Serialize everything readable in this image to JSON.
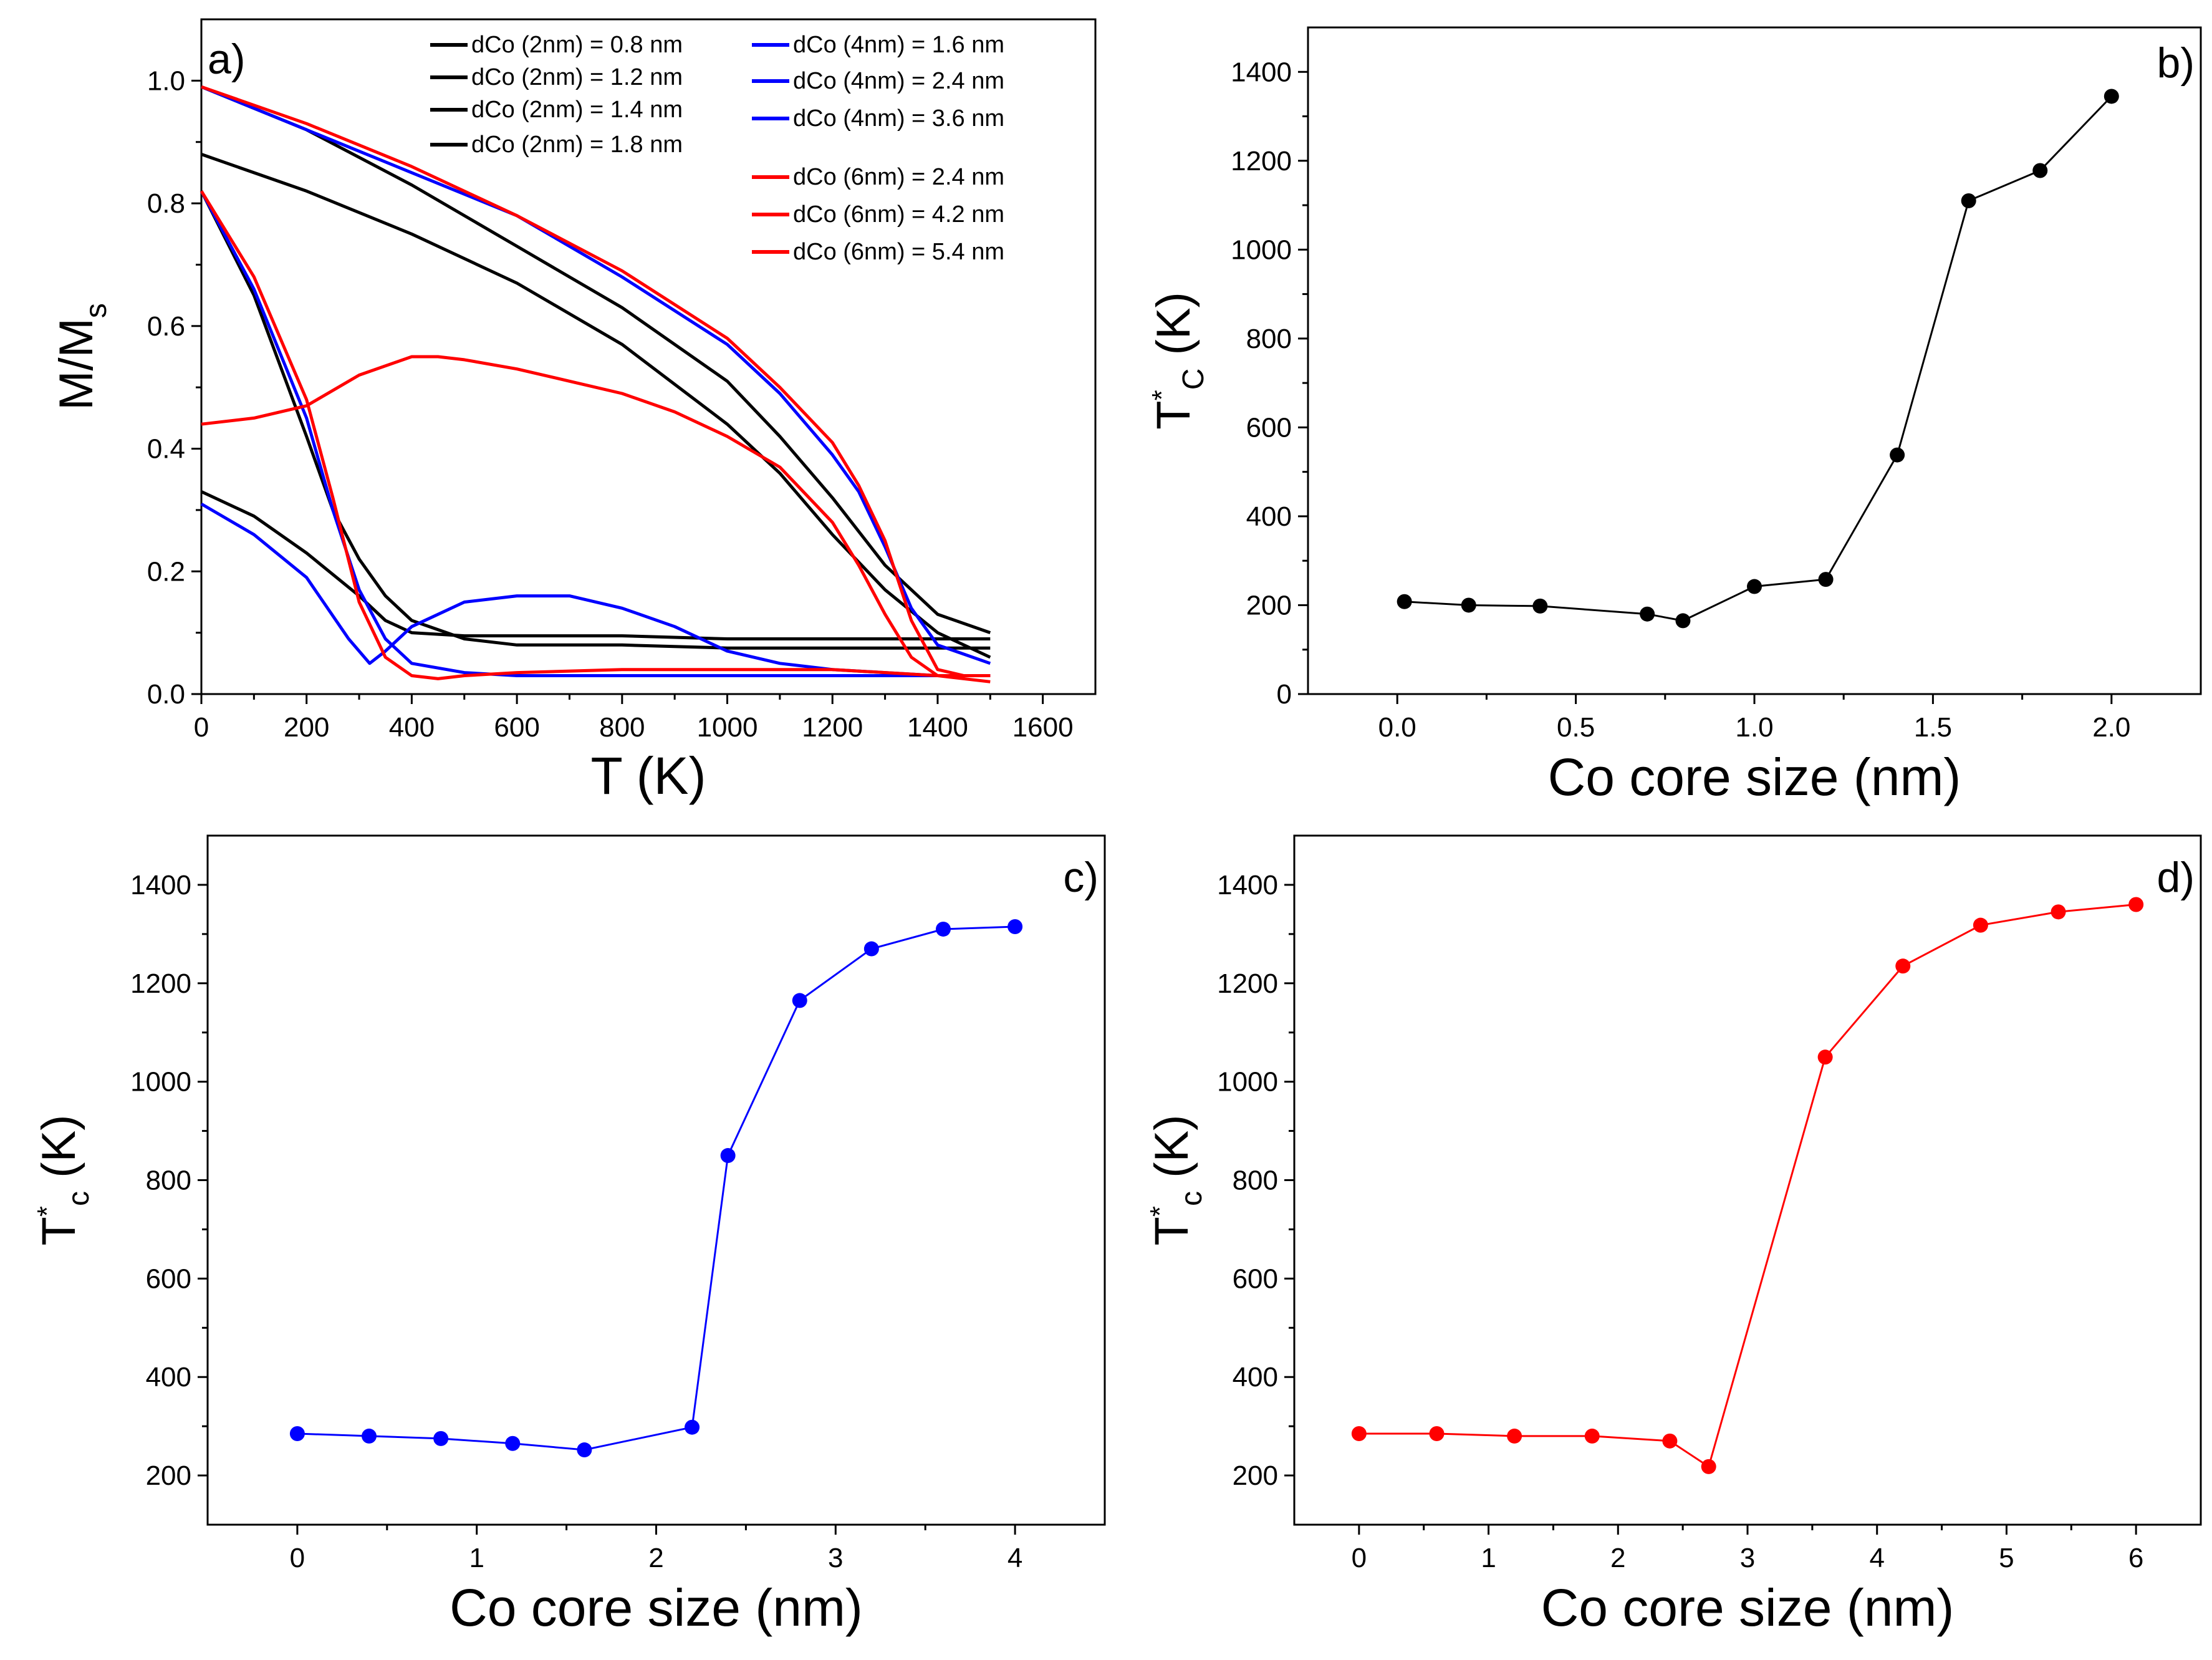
{
  "chart_data": [
    {
      "panel": "a)",
      "type": "line",
      "xlabel": "T  (K)",
      "ylabel": "M/M",
      "ylabel_sub": "s",
      "xlim": [
        0,
        1700
      ],
      "ylim": [
        0,
        1.1
      ],
      "xticks": [
        0,
        200,
        400,
        600,
        800,
        1000,
        1200,
        1400,
        1600
      ],
      "yticks": [
        0.0,
        0.2,
        0.4,
        0.6,
        0.8,
        1.0
      ],
      "series": [
        {
          "name": "dCo (2nm) = 0.8 nm",
          "color": "#000000",
          "x": [
            0,
            100,
            200,
            300,
            350,
            400,
            500,
            600,
            800,
            1000,
            1200,
            1400,
            1500
          ],
          "y": [
            0.33,
            0.29,
            0.23,
            0.16,
            0.12,
            0.1,
            0.095,
            0.095,
            0.095,
            0.09,
            0.09,
            0.09,
            0.09
          ]
        },
        {
          "name": "dCo (2nm) = 1.2 nm",
          "color": "#000000",
          "x": [
            0,
            100,
            200,
            250,
            300,
            350,
            400,
            500,
            600,
            800,
            1000,
            1200,
            1400,
            1500
          ],
          "y": [
            0.82,
            0.65,
            0.42,
            0.3,
            0.22,
            0.16,
            0.12,
            0.09,
            0.08,
            0.08,
            0.075,
            0.075,
            0.075,
            0.075
          ]
        },
        {
          "name": "dCo (2nm) = 1.4 nm",
          "color": "#000000",
          "x": [
            0,
            200,
            400,
            600,
            800,
            1000,
            1100,
            1200,
            1300,
            1400,
            1500
          ],
          "y": [
            0.88,
            0.82,
            0.75,
            0.67,
            0.57,
            0.44,
            0.36,
            0.26,
            0.17,
            0.1,
            0.06
          ]
        },
        {
          "name": "dCo (2nm) = 1.8 nm",
          "color": "#000000",
          "x": [
            0,
            200,
            400,
            600,
            800,
            1000,
            1100,
            1200,
            1300,
            1400,
            1500
          ],
          "y": [
            0.99,
            0.92,
            0.83,
            0.73,
            0.63,
            0.51,
            0.42,
            0.32,
            0.21,
            0.13,
            0.1
          ]
        },
        {
          "name": "dCo (4nm)  = 1.6 nm",
          "color": "#0000ff",
          "x": [
            0,
            100,
            200,
            280,
            320,
            350,
            400,
            500,
            600,
            700,
            800,
            900,
            1000,
            1100,
            1200,
            1300,
            1400,
            1500
          ],
          "y": [
            0.31,
            0.26,
            0.19,
            0.09,
            0.05,
            0.07,
            0.11,
            0.15,
            0.16,
            0.16,
            0.14,
            0.11,
            0.07,
            0.05,
            0.04,
            0.035,
            0.03,
            0.03
          ]
        },
        {
          "name": "dCo (4nm) = 2.4 nm",
          "color": "#0000ff",
          "x": [
            0,
            100,
            200,
            250,
            300,
            350,
            400,
            500,
            600,
            800,
            1000,
            1200,
            1400,
            1500
          ],
          "y": [
            0.82,
            0.66,
            0.45,
            0.3,
            0.17,
            0.09,
            0.05,
            0.035,
            0.03,
            0.03,
            0.03,
            0.03,
            0.03,
            0.03
          ]
        },
        {
          "name": "dCo (4nm) = 3.6 nm",
          "color": "#0000ff",
          "x": [
            0,
            200,
            400,
            600,
            800,
            1000,
            1100,
            1200,
            1250,
            1300,
            1350,
            1400,
            1500
          ],
          "y": [
            0.99,
            0.92,
            0.85,
            0.78,
            0.68,
            0.57,
            0.49,
            0.39,
            0.33,
            0.24,
            0.14,
            0.08,
            0.05
          ]
        },
        {
          "name": "dCo (6nm) = 2.4 nm",
          "color": "#ff0000",
          "x": [
            0,
            100,
            200,
            300,
            400,
            450,
            500,
            600,
            700,
            800,
            900,
            1000,
            1100,
            1200,
            1250,
            1300,
            1350,
            1400,
            1500
          ],
          "y": [
            0.44,
            0.45,
            0.47,
            0.52,
            0.55,
            0.55,
            0.545,
            0.53,
            0.51,
            0.49,
            0.46,
            0.42,
            0.37,
            0.28,
            0.21,
            0.13,
            0.06,
            0.03,
            0.02
          ]
        },
        {
          "name": "dCo (6nm) = 4.2 nm",
          "color": "#ff0000",
          "x": [
            0,
            100,
            200,
            250,
            300,
            350,
            400,
            450,
            500,
            600,
            800,
            1000,
            1200,
            1400,
            1500
          ],
          "y": [
            0.82,
            0.68,
            0.48,
            0.32,
            0.15,
            0.06,
            0.03,
            0.025,
            0.03,
            0.035,
            0.04,
            0.04,
            0.04,
            0.03,
            0.03
          ]
        },
        {
          "name": "dCo (6nm) = 5.4 nm",
          "color": "#ff0000",
          "x": [
            0,
            200,
            400,
            600,
            800,
            1000,
            1100,
            1200,
            1250,
            1300,
            1350,
            1400,
            1450,
            1500
          ],
          "y": [
            0.99,
            0.93,
            0.86,
            0.78,
            0.69,
            0.58,
            0.5,
            0.41,
            0.34,
            0.25,
            0.12,
            0.04,
            0.03,
            0.03
          ]
        }
      ]
    },
    {
      "panel": "b)",
      "type": "line",
      "xlabel": "Co core size (nm)",
      "ylabel": "T",
      "ylabel_sup": "*",
      "ylabel_sub": "C",
      "ylabel_unit": " (K)",
      "xlim": [
        -0.25,
        2.25
      ],
      "ylim": [
        0,
        1500
      ],
      "xticks": [
        0.0,
        0.5,
        1.0,
        1.5,
        2.0
      ],
      "xtick_labels": [
        "0.0",
        "0.5",
        "1.0",
        "1.5",
        "2.0"
      ],
      "yticks": [
        0,
        200,
        400,
        600,
        800,
        1000,
        1200,
        1400
      ],
      "color": "#000000",
      "x": [
        0.02,
        0.2,
        0.4,
        0.7,
        0.8,
        1.0,
        1.2,
        1.4,
        1.6,
        1.8,
        2.0
      ],
      "y": [
        208,
        200,
        198,
        180,
        165,
        242,
        258,
        538,
        1110,
        1178,
        1345
      ]
    },
    {
      "panel": "c)",
      "type": "line",
      "xlabel": "Co core size (nm)",
      "ylabel": "T",
      "ylabel_sup": "*",
      "ylabel_sub": "c",
      "ylabel_unit": " (K)",
      "xlim": [
        -0.5,
        4.5
      ],
      "ylim": [
        100,
        1500
      ],
      "xticks": [
        0,
        1,
        2,
        3,
        4
      ],
      "yticks": [
        200,
        400,
        600,
        800,
        1000,
        1200,
        1400
      ],
      "color": "#0000ff",
      "x": [
        0,
        0.4,
        0.8,
        1.2,
        1.6,
        2.2,
        2.4,
        2.8,
        3.2,
        3.6,
        4.0
      ],
      "y": [
        285,
        280,
        275,
        265,
        252,
        298,
        850,
        1165,
        1270,
        1310,
        1315
      ]
    },
    {
      "panel": "d)",
      "type": "line",
      "xlabel": "Co core size (nm)",
      "ylabel": "T",
      "ylabel_sup": "*",
      "ylabel_sub": "c",
      "ylabel_unit": " (K)",
      "xlim": [
        -0.5,
        6.5
      ],
      "ylim": [
        100,
        1500
      ],
      "xticks": [
        0,
        1,
        2,
        3,
        4,
        5,
        6
      ],
      "yticks": [
        200,
        400,
        600,
        800,
        1000,
        1200,
        1400
      ],
      "color": "#ff0000",
      "x": [
        0,
        0.6,
        1.2,
        1.8,
        2.4,
        2.7,
        3.6,
        4.2,
        4.8,
        5.4,
        6.0
      ],
      "y": [
        285,
        285,
        280,
        280,
        270,
        218,
        1050,
        1235,
        1318,
        1345,
        1360
      ]
    }
  ]
}
